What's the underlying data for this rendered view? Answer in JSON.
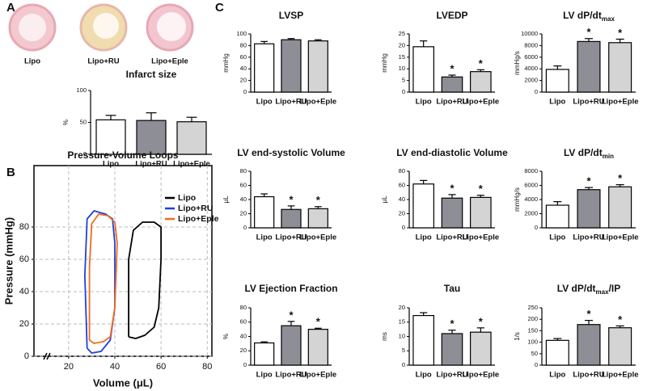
{
  "panels": [
    "A",
    "B",
    "C"
  ],
  "heart_images": [
    "Lipo",
    "Lipo+RU",
    "Lipo+Eple"
  ],
  "chart_data": [
    {
      "type": "bar",
      "title": "Infarct size",
      "ylabel": "%",
      "categories": [
        "Lipo",
        "Lipo+RU",
        "Lipo+Eple"
      ],
      "values": [
        54,
        53,
        51
      ],
      "error": [
        7,
        12,
        7
      ],
      "significance": [
        null,
        null,
        null
      ],
      "colors": [
        "#ffffff",
        "#8e8e96",
        "#d4d4d4"
      ],
      "ylim": [
        0,
        100
      ],
      "yticks": [
        0,
        50,
        100
      ]
    },
    {
      "type": "line",
      "title": "Pressure-Volume Loops",
      "xlabel": "Volume (μL)",
      "ylabel": "Pressure (mmHg)",
      "xlim": [
        5,
        82
      ],
      "ylim": [
        0,
        118
      ],
      "xticks": [
        20,
        40,
        60,
        80
      ],
      "yticks": [
        0,
        20,
        40,
        60,
        80
      ],
      "grid": true,
      "legend": "upper right",
      "series": [
        {
          "name": "Lipo",
          "color": "#000000",
          "x": [
            46,
            46,
            48,
            52,
            57,
            60,
            60,
            59,
            57,
            53,
            49,
            46
          ],
          "y": [
            12,
            60,
            78,
            83,
            83,
            80,
            60,
            30,
            18,
            13,
            11,
            12
          ]
        },
        {
          "name": "Lipo+RU",
          "color": "#1f3fe0",
          "x": [
            28,
            27,
            28,
            31,
            36,
            39,
            40,
            40,
            38,
            34,
            30,
            28
          ],
          "y": [
            5,
            50,
            85,
            90,
            88,
            85,
            70,
            30,
            10,
            3,
            2,
            5
          ]
        },
        {
          "name": "Lipo+Eple",
          "color": "#f26a1b",
          "x": [
            29,
            29,
            30,
            33,
            37,
            40,
            41,
            40,
            38,
            35,
            31,
            29
          ],
          "y": [
            10,
            55,
            82,
            88,
            87,
            83,
            70,
            30,
            12,
            9,
            8,
            10
          ]
        }
      ]
    },
    {
      "type": "bar",
      "title": "LVSP",
      "ylabel": "mmHg",
      "categories": [
        "Lipo",
        "Lipo+RU",
        "Lipo+Eple"
      ],
      "values": [
        83,
        90,
        88
      ],
      "error": [
        4,
        2,
        2
      ],
      "significance": [
        null,
        null,
        null
      ],
      "colors": [
        "#ffffff",
        "#8e8e96",
        "#d4d4d4"
      ],
      "ylim": [
        0,
        100
      ],
      "yticks": [
        0,
        20,
        40,
        60,
        80,
        100
      ]
    },
    {
      "type": "bar",
      "title": "LVEDP",
      "ylabel": "mmHg",
      "categories": [
        "Lipo",
        "Lipo+RU",
        "Lipo+Eple"
      ],
      "values": [
        19.5,
        6.5,
        8.8
      ],
      "error": [
        2.5,
        0.8,
        0.8
      ],
      "significance": [
        null,
        "*",
        "*"
      ],
      "colors": [
        "#ffffff",
        "#8e8e96",
        "#d4d4d4"
      ],
      "ylim": [
        0,
        25
      ],
      "yticks": [
        0,
        5,
        10,
        15,
        20,
        25
      ]
    },
    {
      "type": "bar",
      "title": "LV dP/dt",
      "title_sub": "max",
      "ylabel": "mmHg/s",
      "categories": [
        "Lipo",
        "Lipo+RU",
        "Lipo+Eple"
      ],
      "values": [
        3900,
        8700,
        8500
      ],
      "error": [
        600,
        500,
        600
      ],
      "significance": [
        null,
        "*",
        "*"
      ],
      "colors": [
        "#ffffff",
        "#8e8e96",
        "#d4d4d4"
      ],
      "ylim": [
        0,
        10000
      ],
      "yticks": [
        0,
        2000,
        4000,
        6000,
        8000,
        10000
      ]
    },
    {
      "type": "bar",
      "title": "LV end-systolic Volume",
      "ylabel": "μL",
      "categories": [
        "Lipo",
        "Lipo+RU",
        "Lipo+Eple"
      ],
      "values": [
        44,
        26,
        27
      ],
      "error": [
        4,
        5,
        3
      ],
      "significance": [
        null,
        "*",
        "*"
      ],
      "colors": [
        "#ffffff",
        "#8e8e96",
        "#d4d4d4"
      ],
      "ylim": [
        0,
        80
      ],
      "yticks": [
        0,
        20,
        40,
        60,
        80
      ]
    },
    {
      "type": "bar",
      "title": "LV end-diastolic Volume",
      "ylabel": "μL",
      "categories": [
        "Lipo",
        "Lipo+RU",
        "Lipo+Eple"
      ],
      "values": [
        62,
        42,
        43
      ],
      "error": [
        5,
        5,
        3
      ],
      "significance": [
        null,
        "*",
        "*"
      ],
      "colors": [
        "#ffffff",
        "#8e8e96",
        "#d4d4d4"
      ],
      "ylim": [
        0,
        80
      ],
      "yticks": [
        0,
        20,
        40,
        60,
        80
      ]
    },
    {
      "type": "bar",
      "title": "LV dP/dt",
      "title_sub": "min",
      "ylabel": "mmHg/s",
      "categories": [
        "Lipo",
        "Lipo+RU",
        "Lipo+Eple"
      ],
      "values": [
        3200,
        5400,
        5800
      ],
      "error": [
        500,
        300,
        300
      ],
      "significance": [
        null,
        "*",
        "*"
      ],
      "colors": [
        "#ffffff",
        "#8e8e96",
        "#d4d4d4"
      ],
      "ylim": [
        0,
        8000
      ],
      "yticks": [
        0,
        2000,
        4000,
        6000,
        8000
      ]
    },
    {
      "type": "bar",
      "title": "LV Ejection Fraction",
      "ylabel": "%",
      "categories": [
        "Lipo",
        "Lipo+RU",
        "Lipo+Eple"
      ],
      "values": [
        31,
        55,
        50
      ],
      "error": [
        1.5,
        6,
        1.5
      ],
      "significance": [
        null,
        "*",
        "*"
      ],
      "colors": [
        "#ffffff",
        "#8e8e96",
        "#d4d4d4"
      ],
      "ylim": [
        0,
        80
      ],
      "yticks": [
        0,
        20,
        40,
        60,
        80
      ]
    },
    {
      "type": "bar",
      "title": "Tau",
      "ylabel": "ms",
      "categories": [
        "Lipo",
        "Lipo+RU",
        "Lipo+Eple"
      ],
      "values": [
        17.3,
        11,
        11.5
      ],
      "error": [
        1,
        1.2,
        1.5
      ],
      "significance": [
        null,
        "*",
        "*"
      ],
      "colors": [
        "#ffffff",
        "#8e8e96",
        "#d4d4d4"
      ],
      "ylim": [
        0,
        20
      ],
      "yticks": [
        0,
        5,
        10,
        15,
        20
      ]
    },
    {
      "type": "bar",
      "title": "LV  dP/dt",
      "title_sub": "max",
      "title_suffix": "/IP",
      "ylabel": "1/s",
      "categories": [
        "Lipo",
        "Lipo+RU",
        "Lipo+Eple"
      ],
      "values": [
        108,
        177,
        163
      ],
      "error": [
        8,
        18,
        8
      ],
      "significance": [
        null,
        "*",
        "*"
      ],
      "colors": [
        "#ffffff",
        "#8e8e96",
        "#d4d4d4"
      ],
      "ylim": [
        0,
        250
      ],
      "yticks": [
        0,
        50,
        100,
        150,
        200,
        250
      ]
    }
  ]
}
